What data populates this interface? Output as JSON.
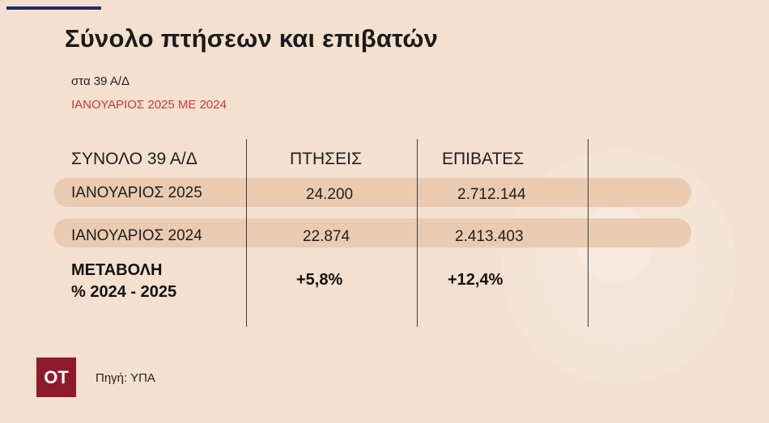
{
  "header": {
    "title": "Σύνολο πτήσεων και επιβατών",
    "subtitle": "στα 39  Α/Δ",
    "period": "ΙΑΝΟΥΑΡΙΟΣ 2025 ΜΕ 2024"
  },
  "table": {
    "columns": [
      "ΣΥΝΟΛΟ 39 Α/Δ",
      "ΠΤΗΣΕΙΣ",
      "ΕΠΙΒΑΤΕΣ"
    ],
    "rows": [
      {
        "label": "ΙΑΝΟΥΑΡΙΟΣ 2025",
        "flights": "24.200",
        "passengers": "2.712.144"
      },
      {
        "label": "ΙΑΝΟΥΑΡΙΟΣ 2024",
        "flights": "22.874",
        "passengers": "2.413.403"
      }
    ],
    "change": {
      "label_line1": "ΜΕΤΑΒΟΛΗ",
      "label_line2": "% 2024 - 2025",
      "flights": "+5,8%",
      "passengers": "+12,4%"
    }
  },
  "footer": {
    "logo": "ΟΤ",
    "source": "Πηγή: ΥΠΑ"
  },
  "colors": {
    "background": "#f4e0cf",
    "row_highlight": "#eacbb1",
    "accent_red": "#c93a36",
    "logo_bg": "#8e1b2c",
    "top_bar": "#1f2a63"
  }
}
